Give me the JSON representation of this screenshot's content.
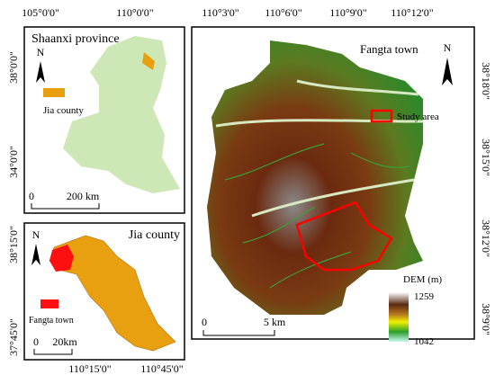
{
  "panels": [
    {
      "title": "Shaanxi province",
      "north": "N",
      "legend": "Jia county",
      "top_labels": [
        "105°0'0\"",
        "110°0'0\""
      ],
      "side_labels": [
        "38°0'0\"",
        "34°0'0\""
      ],
      "scale": [
        "0",
        "200 km"
      ]
    },
    {
      "title": "Jia county",
      "north": "N",
      "legend": "Fangta town",
      "side_labels": [
        "38°15'0\"",
        "37°45'0\""
      ],
      "bottom_labels": [
        "110°15'0\"",
        "110°45'0\""
      ],
      "scale": [
        "0",
        "20km"
      ]
    },
    {
      "title": "Fangta town",
      "north": "N",
      "legend": "Study area",
      "top_labels": [
        "110°3'0\"",
        "110°6'0\"",
        "110°9'0\"",
        "110°12'0\""
      ],
      "side_labels": [
        "38°18'0\"",
        "38°15'0\"",
        "38°12'0\"",
        "38°9'0\""
      ],
      "scale": [
        "0",
        "5 km"
      ],
      "dem": {
        "title": "DEM (m)",
        "max": 1259,
        "min": 1042
      }
    }
  ]
}
